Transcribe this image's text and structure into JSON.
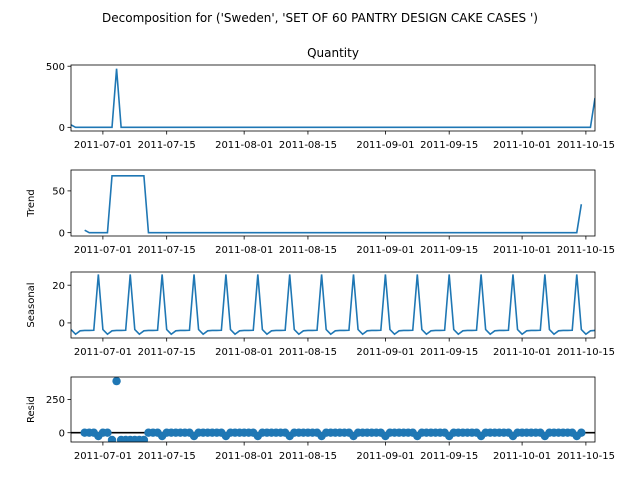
{
  "figure": {
    "suptitle": "Decomposition for ('Sweden', 'SET OF 60 PANTRY DESIGN CAKE CASES ')",
    "line_color": "#1f77b4"
  },
  "chart_data": [
    {
      "type": "line",
      "panel": "observed",
      "title": "Quantity",
      "ylabel": "",
      "x_start": "2011-06-24",
      "x_end": "2011-10-17",
      "xlim": [
        "2011-06-24",
        "2011-10-17"
      ],
      "ylim": [
        -30,
        510
      ],
      "yticks": [
        0,
        500
      ],
      "xtick_labels": [
        "2011-07-01",
        "2011-07-15",
        "2011-08-01",
        "2011-08-15",
        "2011-09-01",
        "2011-09-15",
        "2011-10-01",
        "2011-10-15"
      ],
      "xticks": [
        "2011-07-01",
        "2011-07-15",
        "2011-08-01",
        "2011-08-15",
        "2011-09-01",
        "2011-09-15",
        "2011-10-01",
        "2011-10-15"
      ],
      "values_note": "daily",
      "spikes": [
        [
          "2011-06-24",
          20
        ],
        [
          "2011-07-04",
          480
        ],
        [
          "2011-10-17",
          240
        ]
      ],
      "baseline": 0
    },
    {
      "type": "line",
      "panel": "trend",
      "ylabel": "Trend",
      "xlim": [
        "2011-06-24",
        "2011-10-17"
      ],
      "ylim": [
        -4,
        75
      ],
      "yticks": [
        0,
        50
      ],
      "xtick_labels": [
        "2011-07-01",
        "2011-07-15",
        "2011-08-01",
        "2011-08-15",
        "2011-09-01",
        "2011-09-15",
        "2011-10-01",
        "2011-10-15"
      ],
      "points": [
        [
          "2011-06-27",
          3
        ],
        [
          "2011-06-28",
          0
        ],
        [
          "2011-07-02",
          0
        ],
        [
          "2011-07-03",
          68
        ],
        [
          "2011-07-10",
          68
        ],
        [
          "2011-07-11",
          0
        ],
        [
          "2011-10-13",
          0
        ],
        [
          "2011-10-14",
          34
        ]
      ]
    },
    {
      "type": "line",
      "panel": "seasonal",
      "ylabel": "Seasonal",
      "xlim": [
        "2011-06-24",
        "2011-10-17"
      ],
      "ylim": [
        -8,
        27
      ],
      "yticks": [
        0,
        20
      ],
      "xtick_labels": [
        "2011-07-01",
        "2011-07-15",
        "2011-08-01",
        "2011-08-15",
        "2011-09-01",
        "2011-09-15",
        "2011-10-01",
        "2011-10-15"
      ],
      "period_days": 7,
      "first_peak": "2011-06-30",
      "weekly_pattern": [
        25.7,
        -3.5,
        -6.0,
        -4.2,
        -4.0,
        -4.0,
        -3.9
      ]
    },
    {
      "type": "scatter",
      "panel": "resid",
      "ylabel": "Resid",
      "xlim": [
        "2011-06-24",
        "2011-10-17"
      ],
      "ylim": [
        -70,
        420
      ],
      "yticks": [
        0,
        250
      ],
      "xtick_labels": [
        "2011-07-01",
        "2011-07-15",
        "2011-08-01",
        "2011-08-15",
        "2011-09-01",
        "2011-09-15",
        "2011-10-01",
        "2011-10-15"
      ],
      "zero_line": true,
      "first_point": "2011-06-27",
      "last_point": "2011-10-14",
      "outlier": [
        "2011-07-04",
        389
      ],
      "low_run": [
        [
          "2011-07-03",
          "2011-07-10"
        ],
        -55
      ],
      "weekly_dip": -25
    }
  ]
}
